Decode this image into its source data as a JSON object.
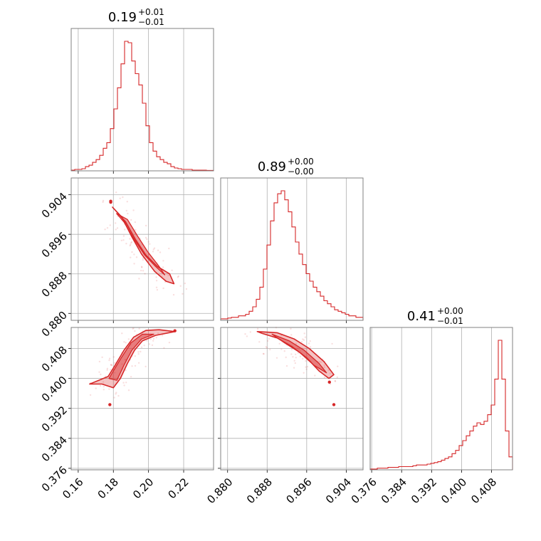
{
  "chart_data": {
    "type": "corner",
    "color": "#d62728",
    "grid": true,
    "parameters": [
      {
        "value": "0.19",
        "plus": "+0.01",
        "minus": "−0.01",
        "range": [
          0.156,
          0.237
        ],
        "ticks": [
          0.16,
          0.18,
          0.2,
          0.22
        ],
        "tick_labels": [
          "0.16",
          "0.18",
          "0.20",
          "0.22"
        ]
      },
      {
        "value": "0.89",
        "plus": "+0.00",
        "minus": "−0.00",
        "range": [
          0.8786,
          0.9074
        ],
        "ticks": [
          0.88,
          0.888,
          0.896,
          0.904
        ],
        "tick_labels": [
          "0.880",
          "0.888",
          "0.896",
          "0.904"
        ]
      },
      {
        "value": "0.41",
        "plus": "+0.00",
        "minus": "−0.01",
        "range": [
          0.3756,
          0.4136
        ],
        "ticks": [
          0.376,
          0.384,
          0.392,
          0.4,
          0.408
        ],
        "tick_labels": [
          "0.376",
          "0.384",
          "0.392",
          "0.400",
          "0.408"
        ]
      }
    ],
    "histograms": [
      [
        0.5,
        1,
        1,
        1.5,
        3,
        4,
        6,
        8,
        11,
        16,
        20,
        30,
        44,
        59,
        76,
        92,
        91,
        78,
        69,
        61,
        48,
        32,
        20,
        14,
        10,
        8,
        6,
        5,
        3,
        2,
        1.5,
        1,
        1,
        1,
        0.5,
        0.5,
        0.5,
        0.5,
        0.3,
        0.3
      ],
      [
        1,
        1,
        1.5,
        2,
        2,
        3,
        3,
        4,
        6,
        9,
        14,
        22,
        34,
        50,
        66,
        78,
        84,
        86,
        80,
        72,
        62,
        52,
        44,
        37,
        31,
        26,
        22,
        19,
        16,
        13,
        11,
        9,
        7,
        6,
        5,
        4,
        3,
        3,
        2,
        2
      ],
      [
        0.5,
        0.5,
        1,
        1,
        1,
        1.5,
        1.5,
        1.5,
        2,
        2,
        2,
        2,
        2.5,
        3,
        3,
        3,
        3.5,
        4,
        4.5,
        5,
        6,
        7,
        8,
        10,
        12,
        15,
        18,
        21,
        24,
        27,
        29,
        28,
        30,
        34,
        40,
        56,
        80,
        56,
        24,
        8
      ]
    ],
    "contours": {
      "1_0": {
        "outer": [
          [
            0.1795,
            0.9015
          ],
          [
            0.1848,
            0.8995
          ],
          [
            0.1905,
            0.8955
          ],
          [
            0.196,
            0.892
          ],
          [
            0.2035,
            0.8885
          ],
          [
            0.21,
            0.8865
          ],
          [
            0.2145,
            0.886
          ],
          [
            0.212,
            0.888
          ],
          [
            0.205,
            0.8895
          ],
          [
            0.1985,
            0.8918
          ],
          [
            0.1925,
            0.895
          ],
          [
            0.187,
            0.8985
          ],
          [
            0.182,
            0.9005
          ]
        ],
        "inner": [
          [
            0.1818,
            0.9002
          ],
          [
            0.186,
            0.8985
          ],
          [
            0.1918,
            0.895
          ],
          [
            0.1978,
            0.8918
          ],
          [
            0.204,
            0.8895
          ],
          [
            0.2092,
            0.8878
          ],
          [
            0.206,
            0.8895
          ],
          [
            0.1995,
            0.8925
          ],
          [
            0.1935,
            0.8958
          ],
          [
            0.188,
            0.899
          ]
        ]
      },
      "2_0": {
        "outer": [
          [
            0.1665,
            0.3985
          ],
          [
            0.1735,
            0.3985
          ],
          [
            0.18,
            0.3975
          ],
          [
            0.184,
            0.4
          ],
          [
            0.188,
            0.404
          ],
          [
            0.192,
            0.4075
          ],
          [
            0.1965,
            0.41
          ],
          [
            0.204,
            0.4115
          ],
          [
            0.215,
            0.4125
          ],
          [
            0.206,
            0.413
          ],
          [
            0.1985,
            0.4128
          ],
          [
            0.1915,
            0.411
          ],
          [
            0.186,
            0.4075
          ],
          [
            0.181,
            0.4035
          ],
          [
            0.177,
            0.4005
          ]
        ],
        "inner": [
          [
            0.1775,
            0.4
          ],
          [
            0.182,
            0.3995
          ],
          [
            0.186,
            0.4035
          ],
          [
            0.1905,
            0.4075
          ],
          [
            0.196,
            0.4105
          ],
          [
            0.203,
            0.4118
          ],
          [
            0.1965,
            0.4118
          ],
          [
            0.19,
            0.4095
          ],
          [
            0.1845,
            0.4055
          ],
          [
            0.18,
            0.402
          ]
        ]
      },
      "2_1": {
        "outer": [
          [
            0.886,
            0.4125
          ],
          [
            0.89,
            0.4122
          ],
          [
            0.8935,
            0.4105
          ],
          [
            0.8965,
            0.408
          ],
          [
            0.8995,
            0.4045
          ],
          [
            0.9015,
            0.401
          ],
          [
            0.9005,
            0.4
          ],
          [
            0.8985,
            0.402
          ],
          [
            0.896,
            0.4055
          ],
          [
            0.893,
            0.4085
          ],
          [
            0.89,
            0.4108
          ],
          [
            0.887,
            0.412
          ]
        ],
        "inner": [
          [
            0.889,
            0.4118
          ],
          [
            0.8925,
            0.41
          ],
          [
            0.8955,
            0.4075
          ],
          [
            0.8985,
            0.404
          ],
          [
            0.9,
            0.4015
          ],
          [
            0.8975,
            0.4035
          ],
          [
            0.8945,
            0.407
          ],
          [
            0.8915,
            0.4095
          ]
        ]
      }
    },
    "outlier_points": {
      "1_0": [
        [
          0.1785,
          0.9027
        ],
        [
          0.1785,
          0.9025
        ]
      ],
      "2_0": [
        [
          0.178,
          0.393
        ],
        [
          0.215,
          0.4127
        ]
      ],
      "2_1": [
        [
          0.9006,
          0.399
        ],
        [
          0.9015,
          0.393
        ]
      ]
    }
  }
}
